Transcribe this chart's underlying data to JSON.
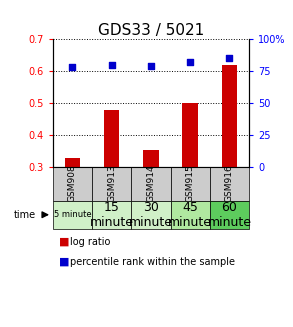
{
  "title": "GDS33 / 5021",
  "categories": [
    "GSM908",
    "GSM913",
    "GSM914",
    "GSM915",
    "GSM916"
  ],
  "log_ratio": [
    0.328,
    0.478,
    0.352,
    0.5,
    0.618
  ],
  "percentile_rank": [
    78,
    80,
    79,
    82,
    85
  ],
  "time_labels": [
    "5 minute",
    "15\nminute",
    "30\nminute",
    "45\nminute",
    "60\nminute"
  ],
  "time_colors": [
    "#d0f0c8",
    "#d0f0c8",
    "#d0f0c8",
    "#b0e8a0",
    "#5dcc5d"
  ],
  "time_font_sizes": [
    6,
    9,
    9,
    9,
    9
  ],
  "gsm_colors": [
    "#cccccc",
    "#cccccc",
    "#cccccc",
    "#cccccc",
    "#cccccc"
  ],
  "bar_color": "#cc0000",
  "scatter_color": "#0000cc",
  "ylim_left": [
    0.3,
    0.7
  ],
  "ylim_right": [
    0,
    100
  ],
  "yticks_left": [
    0.3,
    0.4,
    0.5,
    0.6,
    0.7
  ],
  "yticks_right": [
    0,
    25,
    50,
    75,
    100
  ],
  "ytick_labels_right": [
    "0",
    "25",
    "50",
    "75",
    "100%"
  ],
  "bar_width": 0.4,
  "fig_width": 2.93,
  "fig_height": 3.27,
  "dpi": 100,
  "title_fontsize": 11,
  "tick_fontsize": 7,
  "legend_fontsize": 7,
  "gsm_fontsize": 6.5,
  "legend_square_color_red": "#cc0000",
  "legend_square_color_blue": "#0000cc"
}
